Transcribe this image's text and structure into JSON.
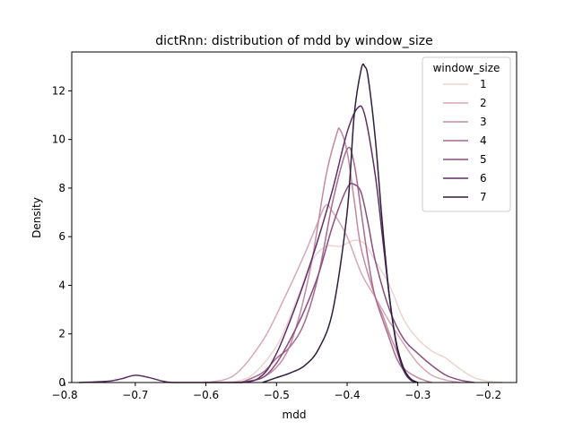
{
  "chart_data": {
    "type": "line",
    "title": "dictRnn: distribution of mdd by window_size",
    "xlabel": "mdd",
    "ylabel": "Density",
    "xlim": [
      -0.79,
      -0.16
    ],
    "ylim": [
      0,
      13.6
    ],
    "xticks": [
      -0.8,
      -0.7,
      -0.6,
      -0.5,
      -0.4,
      -0.3,
      -0.2
    ],
    "xtick_labels": [
      "−0.8",
      "−0.7",
      "−0.6",
      "−0.5",
      "−0.4",
      "−0.3",
      "−0.2"
    ],
    "yticks": [
      0,
      2,
      4,
      6,
      8,
      10,
      12
    ],
    "ytick_labels": [
      "0",
      "2",
      "4",
      "6",
      "8",
      "10",
      "12"
    ],
    "grid": false,
    "legend": {
      "title": "window_size",
      "placement": "top-right"
    },
    "series": [
      {
        "name": "1",
        "color": "#ebd4d2",
        "points": [
          [
            -0.58,
            0
          ],
          [
            -0.54,
            0.2
          ],
          [
            -0.5,
            1.5
          ],
          [
            -0.47,
            3.5
          ],
          [
            -0.45,
            5.0
          ],
          [
            -0.43,
            5.6
          ],
          [
            -0.41,
            5.6
          ],
          [
            -0.39,
            5.85
          ],
          [
            -0.375,
            5.7
          ],
          [
            -0.36,
            5.0
          ],
          [
            -0.34,
            4.0
          ],
          [
            -0.32,
            2.6
          ],
          [
            -0.3,
            1.8
          ],
          [
            -0.28,
            1.3
          ],
          [
            -0.26,
            1.0
          ],
          [
            -0.24,
            0.55
          ],
          [
            -0.22,
            0.2
          ],
          [
            -0.2,
            0.05
          ],
          [
            -0.18,
            0
          ]
        ]
      },
      {
        "name": "2",
        "color": "#d7a8b4",
        "points": [
          [
            -0.6,
            0
          ],
          [
            -0.56,
            0.3
          ],
          [
            -0.52,
            1.7
          ],
          [
            -0.49,
            3.4
          ],
          [
            -0.46,
            5.3
          ],
          [
            -0.44,
            6.7
          ],
          [
            -0.43,
            7.3
          ],
          [
            -0.42,
            7.0
          ],
          [
            -0.4,
            6.0
          ],
          [
            -0.38,
            4.5
          ],
          [
            -0.36,
            3.5
          ],
          [
            -0.34,
            2.5
          ],
          [
            -0.32,
            1.6
          ],
          [
            -0.3,
            0.8
          ],
          [
            -0.28,
            0.3
          ],
          [
            -0.26,
            0.1
          ],
          [
            -0.24,
            0
          ]
        ]
      },
      {
        "name": "3",
        "color": "#c48a9f",
        "points": [
          [
            -0.56,
            0
          ],
          [
            -0.52,
            0.2
          ],
          [
            -0.49,
            1.0
          ],
          [
            -0.47,
            2.5
          ],
          [
            -0.45,
            5.0
          ],
          [
            -0.43,
            8.5
          ],
          [
            -0.415,
            10.2
          ],
          [
            -0.41,
            10.4
          ],
          [
            -0.4,
            9.5
          ],
          [
            -0.39,
            7.5
          ],
          [
            -0.38,
            5.5
          ],
          [
            -0.36,
            3.5
          ],
          [
            -0.35,
            2.8
          ],
          [
            -0.34,
            2.0
          ],
          [
            -0.33,
            1.3
          ],
          [
            -0.32,
            0.6
          ],
          [
            -0.3,
            0.2
          ],
          [
            -0.28,
            0
          ]
        ]
      },
      {
        "name": "4",
        "color": "#a86a8e",
        "points": [
          [
            -0.55,
            0
          ],
          [
            -0.52,
            0.4
          ],
          [
            -0.5,
            1.0
          ],
          [
            -0.48,
            1.5
          ],
          [
            -0.46,
            2.5
          ],
          [
            -0.44,
            4.5
          ],
          [
            -0.42,
            7.5
          ],
          [
            -0.4,
            9.6
          ],
          [
            -0.39,
            9.0
          ],
          [
            -0.38,
            7.0
          ],
          [
            -0.37,
            5.0
          ],
          [
            -0.36,
            3.5
          ],
          [
            -0.34,
            1.8
          ],
          [
            -0.33,
            1.0
          ],
          [
            -0.32,
            0.5
          ],
          [
            -0.31,
            0.15
          ],
          [
            -0.3,
            0
          ]
        ]
      },
      {
        "name": "5",
        "color": "#8a4d7f",
        "points": [
          [
            -0.55,
            0
          ],
          [
            -0.52,
            0.2
          ],
          [
            -0.5,
            0.8
          ],
          [
            -0.48,
            1.8
          ],
          [
            -0.46,
            3.0
          ],
          [
            -0.44,
            4.5
          ],
          [
            -0.42,
            6.5
          ],
          [
            -0.4,
            8.0
          ],
          [
            -0.39,
            8.15
          ],
          [
            -0.38,
            7.8
          ],
          [
            -0.37,
            6.5
          ],
          [
            -0.36,
            5.0
          ],
          [
            -0.34,
            3.0
          ],
          [
            -0.32,
            1.8
          ],
          [
            -0.3,
            1.2
          ],
          [
            -0.28,
            0.7
          ],
          [
            -0.26,
            0.3
          ],
          [
            -0.24,
            0.1
          ],
          [
            -0.22,
            0
          ]
        ]
      },
      {
        "name": "6",
        "color": "#5e2e65",
        "points": [
          [
            -0.78,
            0
          ],
          [
            -0.74,
            0.05
          ],
          [
            -0.72,
            0.15
          ],
          [
            -0.7,
            0.3
          ],
          [
            -0.68,
            0.2
          ],
          [
            -0.66,
            0.05
          ],
          [
            -0.64,
            0
          ],
          [
            -0.55,
            0
          ],
          [
            -0.52,
            0.3
          ],
          [
            -0.5,
            1.2
          ],
          [
            -0.48,
            2.6
          ],
          [
            -0.46,
            4.2
          ],
          [
            -0.44,
            6.0
          ],
          [
            -0.42,
            8.0
          ],
          [
            -0.4,
            10.3
          ],
          [
            -0.385,
            11.3
          ],
          [
            -0.375,
            11.0
          ],
          [
            -0.36,
            8.5
          ],
          [
            -0.35,
            6.0
          ],
          [
            -0.34,
            3.5
          ],
          [
            -0.33,
            1.5
          ],
          [
            -0.32,
            0.5
          ],
          [
            -0.31,
            0.1
          ],
          [
            -0.3,
            0
          ]
        ]
      },
      {
        "name": "7",
        "color": "#2d1e3e",
        "points": [
          [
            -0.52,
            0
          ],
          [
            -0.5,
            0.2
          ],
          [
            -0.48,
            0.4
          ],
          [
            -0.46,
            0.7
          ],
          [
            -0.44,
            1.4
          ],
          [
            -0.42,
            3.0
          ],
          [
            -0.4,
            7.0
          ],
          [
            -0.39,
            11.0
          ],
          [
            -0.38,
            12.9
          ],
          [
            -0.375,
            13.0
          ],
          [
            -0.37,
            12.5
          ],
          [
            -0.36,
            10.0
          ],
          [
            -0.35,
            6.5
          ],
          [
            -0.34,
            3.5
          ],
          [
            -0.33,
            1.6
          ],
          [
            -0.32,
            0.6
          ],
          [
            -0.31,
            0.15
          ],
          [
            -0.3,
            0
          ]
        ]
      }
    ]
  }
}
